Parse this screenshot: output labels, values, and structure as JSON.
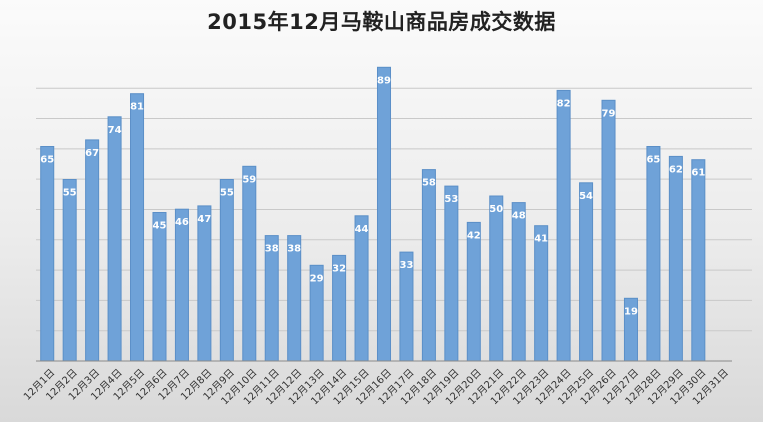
{
  "chart_data": {
    "type": "bar",
    "title": "2015年12月马鞍山商品房成交数据",
    "xlabel": "",
    "ylabel": "",
    "categories": [
      "12月1日",
      "12月2日",
      "12月3日",
      "12月4日",
      "12月5日",
      "12月6日",
      "12月7日",
      "12月8日",
      "12月9日",
      "12月10日",
      "12月11日",
      "12月12日",
      "12月13日",
      "12月14日",
      "12月15日",
      "12月16日",
      "12月17日",
      "12月18日",
      "12月19日",
      "12月20日",
      "12月21日",
      "12月22日",
      "12月23日",
      "12月24日",
      "12月25日",
      "12月26日",
      "12月27日",
      "12月28日",
      "12月29日",
      "12月30日",
      "12月31日"
    ],
    "values": [
      65,
      55,
      67,
      74,
      81,
      45,
      46,
      47,
      55,
      59,
      38,
      38,
      29,
      32,
      44,
      89,
      33,
      58,
      53,
      42,
      50,
      48,
      41,
      82,
      54,
      79,
      19,
      65,
      62,
      61,
      null
    ],
    "ylim": [
      0,
      90
    ],
    "grid": true,
    "legend": "none",
    "colors": {
      "bar": "#6fa2d8",
      "bar_edge": "#5b8fc7",
      "label": "#ffffff"
    }
  }
}
